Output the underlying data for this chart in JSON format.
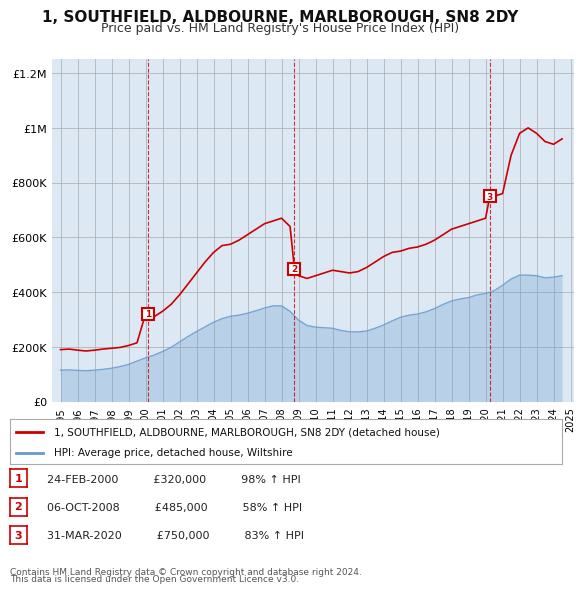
{
  "title": "1, SOUTHFIELD, ALDBOURNE, MARLBOROUGH, SN8 2DY",
  "subtitle": "Price paid vs. HM Land Registry's House Price Index (HPI)",
  "legend_line1": "1, SOUTHFIELD, ALDBOURNE, MARLBOROUGH, SN8 2DY (detached house)",
  "legend_line2": "HPI: Average price, detached house, Wiltshire",
  "footnote1": "Contains HM Land Registry data © Crown copyright and database right 2024.",
  "footnote2": "This data is licensed under the Open Government Licence v3.0.",
  "transactions": [
    {
      "num": 1,
      "date": "24-FEB-2000",
      "price": "£320,000",
      "pct": "98%",
      "dir": "↑"
    },
    {
      "num": 2,
      "date": "06-OCT-2008",
      "price": "£485,000",
      "pct": "58%",
      "dir": "↑"
    },
    {
      "num": 3,
      "date": "31-MAR-2020",
      "price": "£750,000",
      "pct": "83%",
      "dir": "↑"
    }
  ],
  "transaction_years": [
    2000.14,
    2008.76,
    2020.25
  ],
  "transaction_prices": [
    320000,
    485000,
    750000
  ],
  "red_line_x": [
    1995,
    1995.5,
    1996,
    1996.5,
    1997,
    1997.5,
    1998,
    1998.5,
    1999,
    1999.5,
    2000,
    2000.14,
    2000.5,
    2001,
    2001.5,
    2002,
    2002.5,
    2003,
    2003.5,
    2004,
    2004.5,
    2005,
    2005.5,
    2006,
    2006.5,
    2007,
    2007.5,
    2008,
    2008.5,
    2008.76,
    2009,
    2009.5,
    2010,
    2010.5,
    2011,
    2011.5,
    2012,
    2012.5,
    2013,
    2013.5,
    2014,
    2014.5,
    2015,
    2015.5,
    2016,
    2016.5,
    2017,
    2017.5,
    2018,
    2018.5,
    2019,
    2019.5,
    2020,
    2020.25,
    2020.5,
    2021,
    2021.5,
    2022,
    2022.5,
    2023,
    2023.5,
    2024,
    2024.5
  ],
  "red_line_y": [
    190000,
    192000,
    188000,
    185000,
    188000,
    192000,
    195000,
    198000,
    205000,
    215000,
    320000,
    320000,
    310000,
    330000,
    355000,
    390000,
    430000,
    470000,
    510000,
    545000,
    570000,
    575000,
    590000,
    610000,
    630000,
    650000,
    660000,
    670000,
    640000,
    485000,
    460000,
    450000,
    460000,
    470000,
    480000,
    475000,
    470000,
    475000,
    490000,
    510000,
    530000,
    545000,
    550000,
    560000,
    565000,
    575000,
    590000,
    610000,
    630000,
    640000,
    650000,
    660000,
    670000,
    750000,
    750000,
    760000,
    900000,
    980000,
    1000000,
    980000,
    950000,
    940000,
    960000
  ],
  "blue_line_x": [
    1995,
    1995.5,
    1996,
    1996.5,
    1997,
    1997.5,
    1998,
    1998.5,
    1999,
    1999.5,
    2000,
    2000.5,
    2001,
    2001.5,
    2002,
    2002.5,
    2003,
    2003.5,
    2004,
    2004.5,
    2005,
    2005.5,
    2006,
    2006.5,
    2007,
    2007.5,
    2008,
    2008.5,
    2009,
    2009.5,
    2010,
    2010.5,
    2011,
    2011.5,
    2012,
    2012.5,
    2013,
    2013.5,
    2014,
    2014.5,
    2015,
    2015.5,
    2016,
    2016.5,
    2017,
    2017.5,
    2018,
    2018.5,
    2019,
    2019.5,
    2020,
    2020.5,
    2021,
    2021.5,
    2022,
    2022.5,
    2023,
    2023.5,
    2024,
    2024.5
  ],
  "blue_line_y": [
    115000,
    116000,
    114000,
    113000,
    115000,
    118000,
    122000,
    128000,
    136000,
    148000,
    160000,
    170000,
    183000,
    198000,
    218000,
    238000,
    256000,
    273000,
    290000,
    303000,
    312000,
    316000,
    323000,
    332000,
    342000,
    350000,
    350000,
    330000,
    298000,
    278000,
    272000,
    270000,
    268000,
    260000,
    255000,
    255000,
    258000,
    268000,
    280000,
    295000,
    308000,
    316000,
    320000,
    328000,
    340000,
    355000,
    368000,
    375000,
    380000,
    390000,
    395000,
    405000,
    425000,
    448000,
    462000,
    462000,
    460000,
    452000,
    455000,
    460000
  ],
  "ylim": [
    0,
    1250000
  ],
  "xlim": [
    1994.5,
    2025.2
  ],
  "yticks": [
    0,
    200000,
    400000,
    600000,
    800000,
    1000000,
    1200000
  ],
  "ytick_labels": [
    "£0",
    "£200K",
    "£400K",
    "£600K",
    "£800K",
    "£1M",
    "£1.2M"
  ],
  "xticks": [
    1995,
    1996,
    1997,
    1998,
    1999,
    2000,
    2001,
    2002,
    2003,
    2004,
    2005,
    2006,
    2007,
    2008,
    2009,
    2010,
    2011,
    2012,
    2013,
    2014,
    2015,
    2016,
    2017,
    2018,
    2019,
    2020,
    2021,
    2022,
    2023,
    2024,
    2025
  ],
  "bg_color": "#dce9f5",
  "plot_bg": "#dce9f5",
  "red_color": "#cc0000",
  "blue_color": "#6699cc",
  "vline_color": "#cc0000",
  "marker_color": "#cc0000",
  "marker_face": "#ffffff"
}
